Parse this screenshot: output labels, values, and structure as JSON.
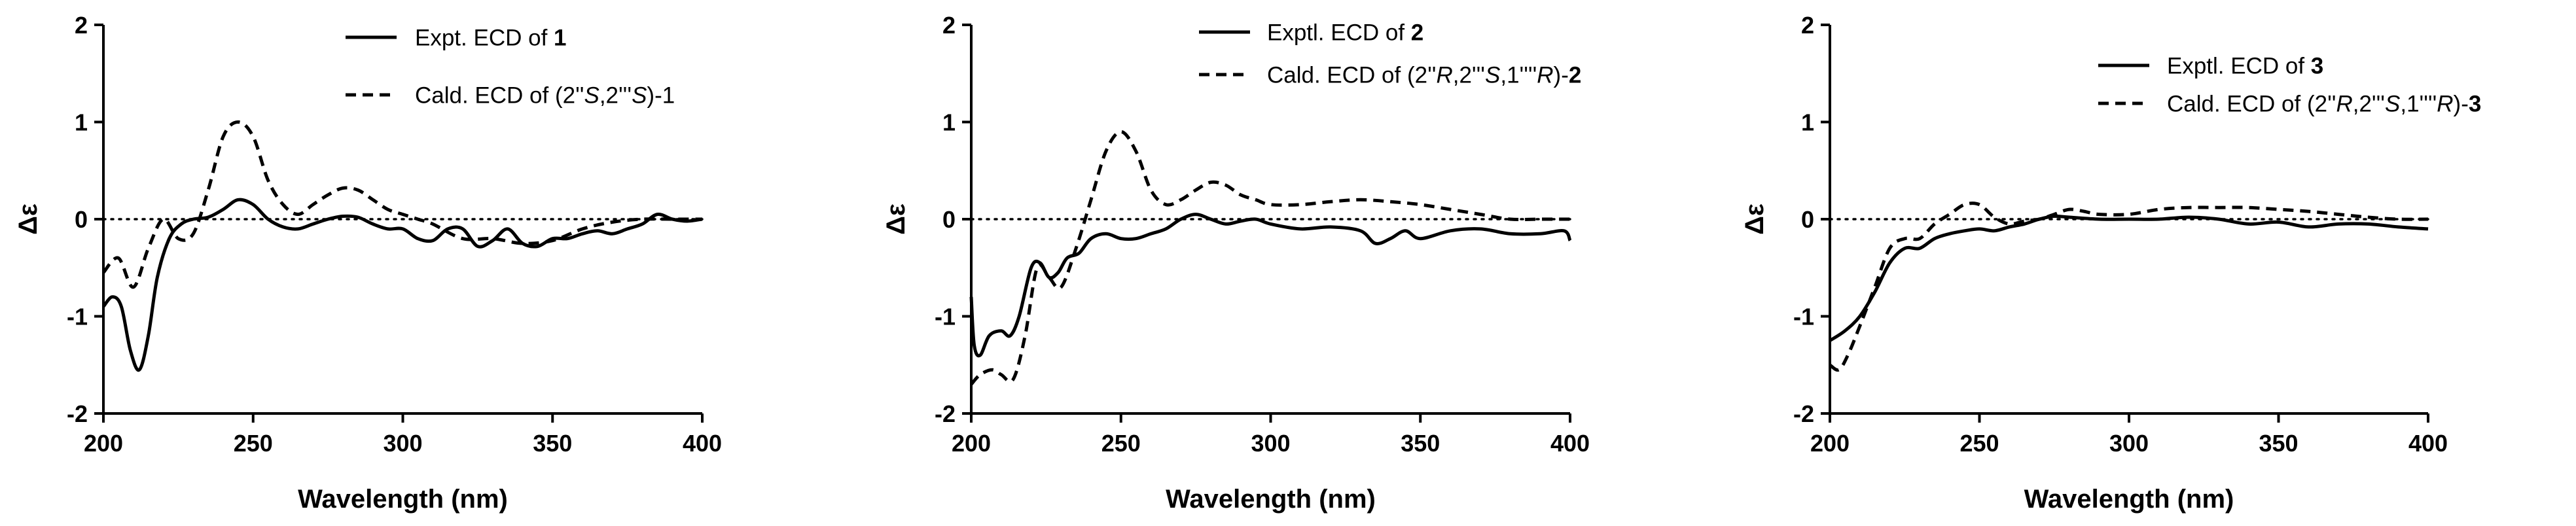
{
  "chart_data": [
    {
      "type": "line",
      "xlabel": "Wavelength (nm)",
      "ylabel": "Δε",
      "xlim": [
        200,
        400
      ],
      "ylim": [
        -2,
        2
      ],
      "xticks": [
        "200",
        "250",
        "300",
        "350",
        "400"
      ],
      "yticks": [
        "-2",
        "-1",
        "0",
        "1",
        "2"
      ],
      "zero_line": "dotted",
      "legend_position": "top-right",
      "series": [
        {
          "name": "Expt. ECD of 1",
          "legend": [
            {
              "t": "Expt. ECD of "
            },
            {
              "t": "1",
              "b": true
            }
          ],
          "style": "solid",
          "x": [
            200,
            203,
            206,
            209,
            212,
            215,
            218,
            222,
            226,
            230,
            235,
            240,
            245,
            250,
            255,
            260,
            265,
            270,
            275,
            280,
            285,
            290,
            295,
            300,
            305,
            310,
            315,
            320,
            325,
            330,
            335,
            340,
            345,
            350,
            355,
            360,
            365,
            370,
            375,
            380,
            385,
            390,
            395,
            400
          ],
          "y": [
            -0.9,
            -0.8,
            -0.9,
            -1.35,
            -1.55,
            -1.2,
            -0.6,
            -0.2,
            -0.05,
            0.0,
            0.02,
            0.1,
            0.2,
            0.15,
            0.0,
            -0.08,
            -0.1,
            -0.05,
            0.0,
            0.03,
            0.02,
            -0.05,
            -0.1,
            -0.1,
            -0.2,
            -0.22,
            -0.1,
            -0.1,
            -0.28,
            -0.22,
            -0.1,
            -0.25,
            -0.28,
            -0.2,
            -0.2,
            -0.15,
            -0.12,
            -0.15,
            -0.1,
            -0.05,
            0.05,
            0.0,
            -0.02,
            0.0
          ]
        },
        {
          "name": "Cald. ECD of (2''S,2'''S)-1",
          "legend": [
            {
              "t": "Cald. ECD of (2''"
            },
            {
              "t": "S",
              "i": true
            },
            {
              "t": ",2'''"
            },
            {
              "t": "S",
              "i": true
            },
            {
              "t": ")-1"
            }
          ],
          "style": "dashed",
          "x": [
            200,
            205,
            210,
            215,
            220,
            225,
            230,
            235,
            240,
            245,
            250,
            255,
            260,
            265,
            270,
            275,
            280,
            285,
            290,
            295,
            300,
            305,
            310,
            320,
            330,
            340,
            350,
            360,
            370,
            380,
            390,
            400
          ],
          "y": [
            -0.55,
            -0.4,
            -0.7,
            -0.3,
            0.0,
            -0.2,
            -0.15,
            0.3,
            0.85,
            1.0,
            0.85,
            0.4,
            0.15,
            0.05,
            0.15,
            0.25,
            0.32,
            0.3,
            0.2,
            0.1,
            0.05,
            0.0,
            -0.05,
            -0.2,
            -0.2,
            -0.25,
            -0.22,
            -0.1,
            -0.03,
            0.0,
            0.0,
            0.0
          ]
        }
      ]
    },
    {
      "type": "line",
      "xlabel": "Wavelength (nm)",
      "ylabel": "Δε",
      "xlim": [
        200,
        400
      ],
      "ylim": [
        -2,
        2
      ],
      "xticks": [
        "200",
        "250",
        "300",
        "350",
        "400"
      ],
      "yticks": [
        "-2",
        "-1",
        "0",
        "1",
        "2"
      ],
      "zero_line": "dotted",
      "legend_position": "top-right",
      "series": [
        {
          "name": "Exptl. ECD of 2",
          "legend": [
            {
              "t": "Exptl. ECD of "
            },
            {
              "t": "2",
              "b": true
            }
          ],
          "style": "solid",
          "x": [
            200,
            201,
            203,
            206,
            210,
            213,
            216,
            220,
            223,
            226,
            229,
            232,
            236,
            240,
            245,
            250,
            255,
            260,
            265,
            270,
            275,
            280,
            285,
            290,
            295,
            300,
            310,
            320,
            330,
            335,
            340,
            345,
            350,
            360,
            370,
            380,
            390,
            398,
            400
          ],
          "y": [
            -0.8,
            -1.3,
            -1.4,
            -1.2,
            -1.15,
            -1.2,
            -1.0,
            -0.5,
            -0.45,
            -0.6,
            -0.55,
            -0.4,
            -0.35,
            -0.2,
            -0.15,
            -0.2,
            -0.2,
            -0.15,
            -0.1,
            0.0,
            0.05,
            0.0,
            -0.05,
            -0.02,
            0.0,
            -0.05,
            -0.1,
            -0.08,
            -0.12,
            -0.25,
            -0.2,
            -0.12,
            -0.2,
            -0.12,
            -0.1,
            -0.15,
            -0.15,
            -0.12,
            -0.22
          ]
        },
        {
          "name": "Cald. ECD of (2''R,2'''S,1''''R)-2",
          "legend": [
            {
              "t": "Cald. ECD of (2''"
            },
            {
              "t": "R",
              "i": true
            },
            {
              "t": ",2'''"
            },
            {
              "t": "S",
              "i": true
            },
            {
              "t": ",1''''"
            },
            {
              "t": "R",
              "i": true
            },
            {
              "t": ")-"
            },
            {
              "t": "2",
              "b": true
            }
          ],
          "style": "dashed",
          "x": [
            200,
            203,
            207,
            210,
            214,
            218,
            222,
            226,
            230,
            235,
            240,
            245,
            250,
            255,
            260,
            265,
            270,
            275,
            280,
            285,
            290,
            295,
            300,
            310,
            320,
            330,
            340,
            350,
            360,
            370,
            380,
            390,
            400
          ],
          "y": [
            -1.7,
            -1.6,
            -1.55,
            -1.6,
            -1.65,
            -1.2,
            -0.5,
            -0.6,
            -0.7,
            -0.3,
            0.2,
            0.7,
            0.9,
            0.7,
            0.3,
            0.15,
            0.2,
            0.3,
            0.38,
            0.35,
            0.25,
            0.2,
            0.15,
            0.15,
            0.18,
            0.2,
            0.18,
            0.15,
            0.1,
            0.05,
            0.0,
            0.0,
            0.0
          ]
        }
      ]
    },
    {
      "type": "line",
      "xlabel": "Wavelength (nm)",
      "ylabel": "Δε",
      "xlim": [
        200,
        400
      ],
      "ylim": [
        -2,
        2
      ],
      "xticks": [
        "200",
        "250",
        "300",
        "350",
        "400"
      ],
      "yticks": [
        "-2",
        "-1",
        "0",
        "1",
        "2"
      ],
      "zero_line": "dotted",
      "legend_position": "top-right",
      "series": [
        {
          "name": "Exptl. ECD of 3",
          "legend": [
            {
              "t": "Exptl. ECD of "
            },
            {
              "t": "3",
              "b": true
            }
          ],
          "style": "solid",
          "x": [
            200,
            205,
            210,
            215,
            220,
            225,
            230,
            235,
            240,
            245,
            250,
            255,
            260,
            265,
            270,
            275,
            280,
            290,
            300,
            310,
            320,
            330,
            340,
            350,
            360,
            370,
            380,
            390,
            400
          ],
          "y": [
            -1.25,
            -1.15,
            -1.0,
            -0.75,
            -0.45,
            -0.3,
            -0.3,
            -0.2,
            -0.15,
            -0.12,
            -0.1,
            -0.12,
            -0.08,
            -0.05,
            0.0,
            0.03,
            0.02,
            0.0,
            0.0,
            0.0,
            0.02,
            0.0,
            -0.05,
            -0.03,
            -0.08,
            -0.05,
            -0.05,
            -0.08,
            -0.1
          ]
        },
        {
          "name": "Cald. ECD of (2''R,2'''S,1''''R)-3",
          "legend": [
            {
              "t": "Cald. ECD of (2''"
            },
            {
              "t": "R",
              "i": true
            },
            {
              "t": ",2'''"
            },
            {
              "t": "S",
              "i": true
            },
            {
              "t": ",1''''"
            },
            {
              "t": "R",
              "i": true
            },
            {
              "t": ")-"
            },
            {
              "t": "3",
              "b": true
            }
          ],
          "style": "dashed",
          "x": [
            200,
            203,
            206,
            210,
            215,
            220,
            225,
            230,
            235,
            240,
            245,
            250,
            255,
            260,
            265,
            270,
            275,
            280,
            285,
            290,
            300,
            310,
            320,
            330,
            340,
            350,
            360,
            370,
            380,
            390,
            400
          ],
          "y": [
            -1.5,
            -1.55,
            -1.4,
            -1.1,
            -0.7,
            -0.3,
            -0.2,
            -0.2,
            -0.05,
            0.05,
            0.15,
            0.15,
            0.02,
            -0.05,
            -0.02,
            0.0,
            0.05,
            0.1,
            0.08,
            0.05,
            0.05,
            0.1,
            0.12,
            0.12,
            0.12,
            0.1,
            0.08,
            0.05,
            0.02,
            0.0,
            0.0
          ]
        }
      ]
    }
  ],
  "colors": {
    "line": "#000000",
    "background": "#ffffff"
  }
}
